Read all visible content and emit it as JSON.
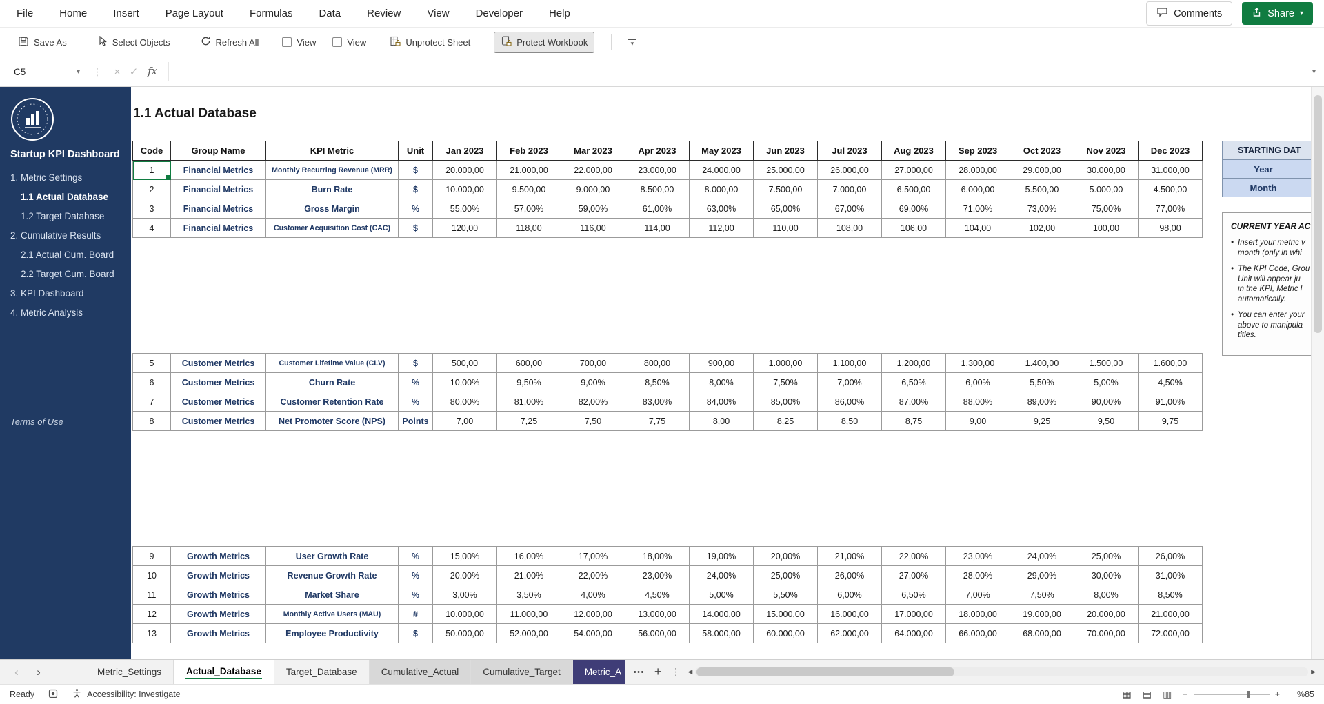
{
  "colors": {
    "accent_green": "#107C41",
    "sidebar_bg": "#203A63",
    "navy_text": "#1F3864",
    "tab_purple": "#3F3D77",
    "tab_gray": "#D8D8D8",
    "panel_blue": "#CBD9F1"
  },
  "icons": {
    "chevron_down": "▾",
    "kebab": "⋮",
    "splitter_dots": "⋮",
    "close": "×",
    "check": "✓",
    "fx": "fx",
    "nav_left": "‹",
    "nav_right": "›",
    "scroll_left": "◀",
    "scroll_right": "▶",
    "view_normal": "▦",
    "view_layout": "▤",
    "view_break": "▥",
    "zoom_out": "−",
    "zoom_in": "+",
    "bullet": "•"
  },
  "menu": {
    "items": [
      "File",
      "Home",
      "Insert",
      "Page Layout",
      "Formulas",
      "Data",
      "Review",
      "View",
      "Developer",
      "Help"
    ],
    "comments": "Comments",
    "share": "Share"
  },
  "toolbar": {
    "save_as": "Save As",
    "select_objects": "Select Objects",
    "refresh_all": "Refresh All",
    "view_checkbox_1": "View",
    "view_checkbox_2": "View",
    "unprotect_sheet": "Unprotect Sheet",
    "protect_workbook": "Protect Workbook"
  },
  "formula_bar": {
    "cell_ref": "C5",
    "formula": ""
  },
  "sidebar": {
    "title": "Startup KPI Dashboard",
    "items": [
      {
        "label": "1. Metric Settings",
        "level": 0,
        "active": false
      },
      {
        "label": "1.1 Actual Database",
        "level": 1,
        "active": true
      },
      {
        "label": "1.2 Target Database",
        "level": 1,
        "active": false
      },
      {
        "label": "2. Cumulative Results",
        "level": 0,
        "active": false
      },
      {
        "label": "2.1 Actual Cum. Board",
        "level": 1,
        "active": false
      },
      {
        "label": "2.2 Target Cum. Board",
        "level": 1,
        "active": false
      },
      {
        "label": "3. KPI Dashboard",
        "level": 0,
        "active": false
      },
      {
        "label": "4. Metric Analysis",
        "level": 0,
        "active": false
      }
    ],
    "footer": "Terms of Use"
  },
  "sheet": {
    "title": "1.1 Actual Database",
    "headers": [
      "Code",
      "Group Name",
      "KPI Metric",
      "Unit",
      "Jan 2023",
      "Feb 2023",
      "Mar 2023",
      "Apr 2023",
      "May 2023",
      "Jun 2023",
      "Jul 2023",
      "Aug 2023",
      "Sep 2023",
      "Oct 2023",
      "Nov 2023",
      "Dec 2023"
    ],
    "rows": [
      {
        "code": "1",
        "group": "Financial Metrics",
        "metric": "Monthly Recurring Revenue (MRR)",
        "unit": "$",
        "selected": true,
        "values": [
          "20.000,00",
          "21.000,00",
          "22.000,00",
          "23.000,00",
          "24.000,00",
          "25.000,00",
          "26.000,00",
          "27.000,00",
          "28.000,00",
          "29.000,00",
          "30.000,00",
          "31.000,00"
        ]
      },
      {
        "code": "2",
        "group": "Financial Metrics",
        "metric": "Burn Rate",
        "unit": "$",
        "values": [
          "10.000,00",
          "9.500,00",
          "9.000,00",
          "8.500,00",
          "8.000,00",
          "7.500,00",
          "7.000,00",
          "6.500,00",
          "6.000,00",
          "5.500,00",
          "5.000,00",
          "4.500,00"
        ]
      },
      {
        "code": "3",
        "group": "Financial Metrics",
        "metric": "Gross Margin",
        "unit": "%",
        "values": [
          "55,00%",
          "57,00%",
          "59,00%",
          "61,00%",
          "63,00%",
          "65,00%",
          "67,00%",
          "69,00%",
          "71,00%",
          "73,00%",
          "75,00%",
          "77,00%"
        ]
      },
      {
        "code": "4",
        "group": "Financial Metrics",
        "metric": "Customer Acquisition Cost (CAC)",
        "unit": "$",
        "values": [
          "120,00",
          "118,00",
          "116,00",
          "114,00",
          "112,00",
          "110,00",
          "108,00",
          "106,00",
          "104,00",
          "102,00",
          "100,00",
          "98,00"
        ]
      },
      {
        "blank": true
      },
      {
        "blank": true
      },
      {
        "blank": true
      },
      {
        "blank": true
      },
      {
        "blank": true
      },
      {
        "blank": true
      },
      {
        "code": "5",
        "group": "Customer Metrics",
        "metric": "Customer Lifetime Value (CLV)",
        "unit": "$",
        "values": [
          "500,00",
          "600,00",
          "700,00",
          "800,00",
          "900,00",
          "1.000,00",
          "1.100,00",
          "1.200,00",
          "1.300,00",
          "1.400,00",
          "1.500,00",
          "1.600,00"
        ]
      },
      {
        "code": "6",
        "group": "Customer Metrics",
        "metric": "Churn Rate",
        "unit": "%",
        "values": [
          "10,00%",
          "9,50%",
          "9,00%",
          "8,50%",
          "8,00%",
          "7,50%",
          "7,00%",
          "6,50%",
          "6,00%",
          "5,50%",
          "5,00%",
          "4,50%"
        ]
      },
      {
        "code": "7",
        "group": "Customer Metrics",
        "metric": "Customer Retention Rate",
        "unit": "%",
        "values": [
          "80,00%",
          "81,00%",
          "82,00%",
          "83,00%",
          "84,00%",
          "85,00%",
          "86,00%",
          "87,00%",
          "88,00%",
          "89,00%",
          "90,00%",
          "91,00%"
        ]
      },
      {
        "code": "8",
        "group": "Customer Metrics",
        "metric": "Net Promoter Score (NPS)",
        "unit": "Points",
        "values": [
          "7,00",
          "7,25",
          "7,50",
          "7,75",
          "8,00",
          "8,25",
          "8,50",
          "8,75",
          "9,00",
          "9,25",
          "9,50",
          "9,75"
        ]
      },
      {
        "blank": true
      },
      {
        "blank": true
      },
      {
        "blank": true
      },
      {
        "blank": true
      },
      {
        "blank": true
      },
      {
        "blank": true
      },
      {
        "code": "9",
        "group": "Growth Metrics",
        "metric": "User Growth Rate",
        "unit": "%",
        "values": [
          "15,00%",
          "16,00%",
          "17,00%",
          "18,00%",
          "19,00%",
          "20,00%",
          "21,00%",
          "22,00%",
          "23,00%",
          "24,00%",
          "25,00%",
          "26,00%"
        ]
      },
      {
        "code": "10",
        "group": "Growth Metrics",
        "metric": "Revenue Growth Rate",
        "unit": "%",
        "values": [
          "20,00%",
          "21,00%",
          "22,00%",
          "23,00%",
          "24,00%",
          "25,00%",
          "26,00%",
          "27,00%",
          "28,00%",
          "29,00%",
          "30,00%",
          "31,00%"
        ]
      },
      {
        "code": "11",
        "group": "Growth Metrics",
        "metric": "Market Share",
        "unit": "%",
        "values": [
          "3,00%",
          "3,50%",
          "4,00%",
          "4,50%",
          "5,00%",
          "5,50%",
          "6,00%",
          "6,50%",
          "7,00%",
          "7,50%",
          "8,00%",
          "8,50%"
        ]
      },
      {
        "code": "12",
        "group": "Growth Metrics",
        "metric": "Monthly Active Users (MAU)",
        "unit": "#",
        "values": [
          "10.000,00",
          "11.000,00",
          "12.000,00",
          "13.000,00",
          "14.000,00",
          "15.000,00",
          "16.000,00",
          "17.000,00",
          "18.000,00",
          "19.000,00",
          "20.000,00",
          "21.000,00"
        ]
      },
      {
        "code": "13",
        "group": "Growth Metrics",
        "metric": "Employee Productivity",
        "unit": "$",
        "values": [
          "50.000,00",
          "52.000,00",
          "54.000,00",
          "56.000,00",
          "58.000,00",
          "60.000,00",
          "62.000,00",
          "64.000,00",
          "66.000,00",
          "68.000,00",
          "70.000,00",
          "72.000,00"
        ]
      }
    ]
  },
  "right_panel": {
    "starting_date_title": "STARTING DAT",
    "year_label": "Year",
    "month_label": "Month",
    "notes_title": "CURRENT YEAR ACTU",
    "notes": [
      {
        "lines": [
          "Insert your metric v",
          "month (only in whi"
        ]
      },
      {
        "lines": [
          "The KPI Code, Grou",
          "Unit will appear ju",
          "in the KPI, Metric l",
          "automatically."
        ]
      },
      {
        "lines": [
          "You can enter your",
          "above to manipula",
          "titles."
        ]
      }
    ]
  },
  "tabs": {
    "items": [
      {
        "label": "Metric_Settings",
        "state": "normal"
      },
      {
        "label": "Actual_Database",
        "state": "active"
      },
      {
        "label": "Target_Database",
        "state": "normal"
      },
      {
        "label": "Cumulative_Actual",
        "state": "shaded"
      },
      {
        "label": "Cumulative_Target",
        "state": "shaded"
      },
      {
        "label": "Metric_A",
        "state": "colored"
      }
    ],
    "more": "•••",
    "add": "+"
  },
  "status_bar": {
    "ready": "Ready",
    "accessibility": "Accessibility: Investigate",
    "zoom": "%85"
  }
}
